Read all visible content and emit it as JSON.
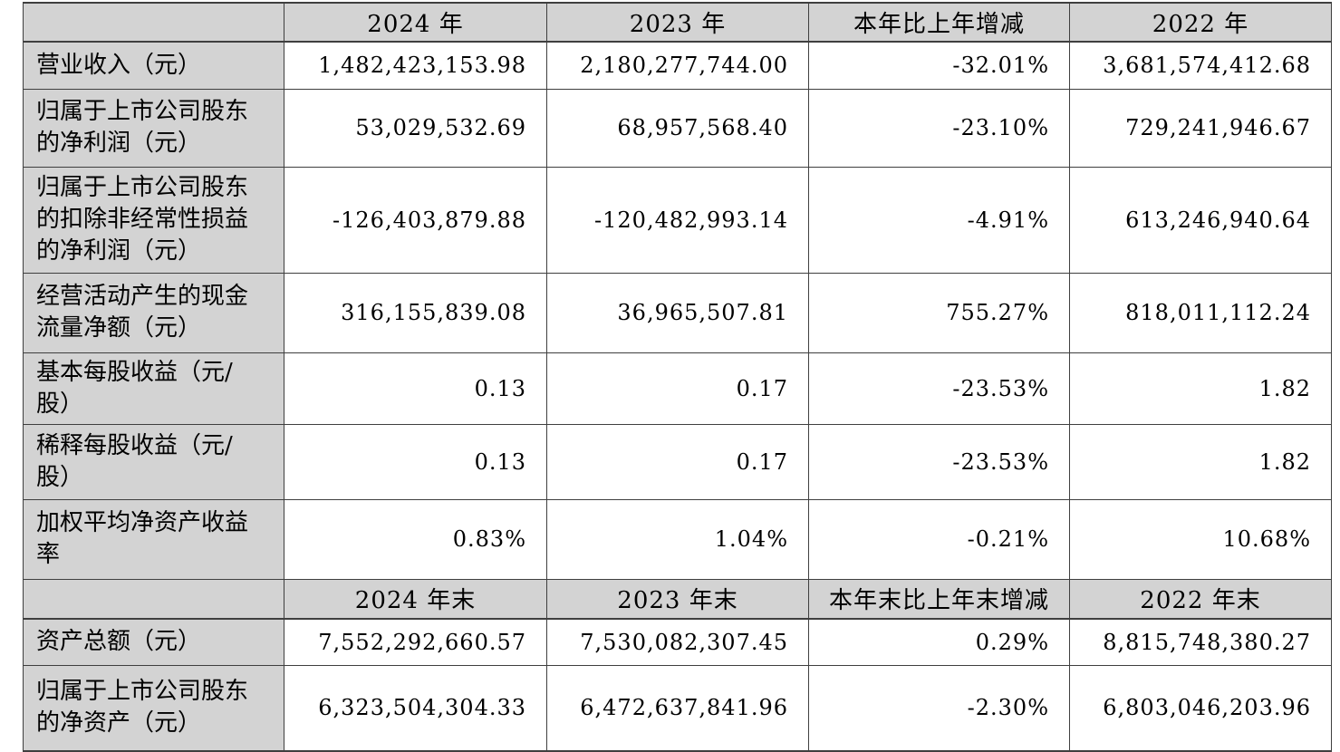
{
  "colors": {
    "header_and_label_fill": "#d3d3d3",
    "border": "#3f3f3f",
    "text": "#000000",
    "data_cell_fill": "#ffffff"
  },
  "chart_data": {
    "type": "table",
    "description_layout": "two stacked sections sharing 5 columns; first column labels and both header rows shaded gray; numeric cells right-aligned; header cells centered",
    "sections": [
      {
        "header": [
          "",
          "2024 年",
          "2023 年",
          "本年比上年增减",
          "2022 年"
        ],
        "rows": [
          [
            "营业收入（元）",
            "1,482,423,153.98",
            "2,180,277,744.00",
            "-32.01%",
            "3,681,574,412.68"
          ],
          [
            "归属于上市公司股东的净利润（元）",
            "53,029,532.69",
            "68,957,568.40",
            "-23.10%",
            "729,241,946.67"
          ],
          [
            "归属于上市公司股东的扣除非经常性损益的净利润（元）",
            "-126,403,879.88",
            "-120,482,993.14",
            "-4.91%",
            "613,246,940.64"
          ],
          [
            "经营活动产生的现金流量净额（元）",
            "316,155,839.08",
            "36,965,507.81",
            "755.27%",
            "818,011,112.24"
          ],
          [
            "基本每股收益（元/股）",
            "0.13",
            "0.17",
            "-23.53%",
            "1.82"
          ],
          [
            "稀释每股收益（元/股）",
            "0.13",
            "0.17",
            "-23.53%",
            "1.82"
          ],
          [
            "加权平均净资产收益率",
            "0.83%",
            "1.04%",
            "-0.21%",
            "10.68%"
          ]
        ]
      },
      {
        "header": [
          "",
          "2024 年末",
          "2023 年末",
          "本年末比上年末增减",
          "2022 年末"
        ],
        "rows": [
          [
            "资产总额（元）",
            "7,552,292,660.57",
            "7,530,082,307.45",
            "0.29%",
            "8,815,748,380.27"
          ],
          [
            "归属于上市公司股东的净资产（元）",
            "6,323,504,304.33",
            "6,472,637,841.96",
            "-2.30%",
            "6,803,046,203.96"
          ]
        ]
      }
    ]
  }
}
